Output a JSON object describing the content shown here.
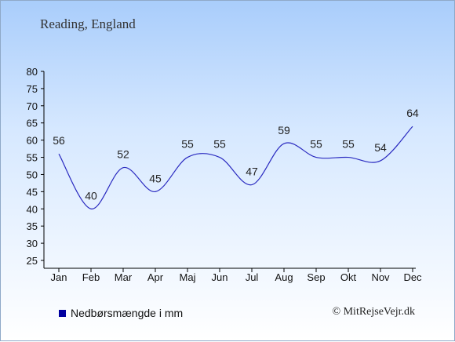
{
  "title": "Reading, England",
  "legend": {
    "label": "Nedbørsmængde i mm"
  },
  "credit": "© MitRejseVejr.dk",
  "colors": {
    "line": "#2a2ac0",
    "swatch": "#0000a0",
    "axis": "#000000"
  },
  "chart_data": {
    "type": "line",
    "categories": [
      "Jan",
      "Feb",
      "Mar",
      "Apr",
      "Maj",
      "Jun",
      "Jul",
      "Aug",
      "Sep",
      "Okt",
      "Nov",
      "Dec"
    ],
    "series": [
      {
        "values": [
          56,
          40,
          52,
          45,
          55,
          55,
          47,
          59,
          55,
          55,
          54,
          64
        ]
      }
    ],
    "ylim": [
      25,
      80
    ],
    "yticks": [
      25,
      30,
      35,
      40,
      45,
      50,
      55,
      60,
      65,
      70,
      75,
      80
    ],
    "grid": false,
    "legend_position": "bottom-left"
  }
}
